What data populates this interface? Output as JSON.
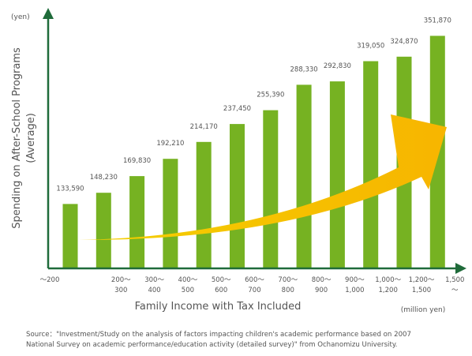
{
  "chart_data": {
    "type": "bar",
    "title": "",
    "xlabel": "Family Income with Tax Included",
    "ylabel_line1": "Spending on After-School Programs",
    "ylabel_line2": "(Average)",
    "y_unit": "(yen)",
    "x_unit": "(million yen)",
    "categories": [
      [
        "～200"
      ],
      [
        "200～",
        "300"
      ],
      [
        "300～",
        "400"
      ],
      [
        "400～",
        "500"
      ],
      [
        "500～",
        "600"
      ],
      [
        "600～",
        "700"
      ],
      [
        "700～",
        "800"
      ],
      [
        "800～",
        "900"
      ],
      [
        "900～",
        "1,000"
      ],
      [
        "1,000～",
        "1,200"
      ],
      [
        "1,200～",
        "1,500"
      ],
      [
        "1,500",
        "～"
      ]
    ],
    "values": [
      133590,
      148230,
      169830,
      192210,
      214170,
      237450,
      255390,
      288330,
      292830,
      319050,
      324870,
      351870
    ],
    "value_labels": [
      "133,590",
      "148,230",
      "169,830",
      "192,210",
      "214,170",
      "237,450",
      "255,390",
      "288,330",
      "292,830",
      "319,050",
      "324,870",
      "351,870"
    ],
    "ylim": [
      50000,
      380000
    ],
    "grid": false,
    "bar_color": "#76b222",
    "axis_color": "#1f6b3a",
    "arrow_color": "#f7b500"
  },
  "source_line1": "Source：\"Investment/Study  on the analysis of factors  impacting children's  academic performance based on 2007",
  "source_line2": "National  Survey on academic performance/education  activity  (detailed survey)\" from Ochanomizu University."
}
